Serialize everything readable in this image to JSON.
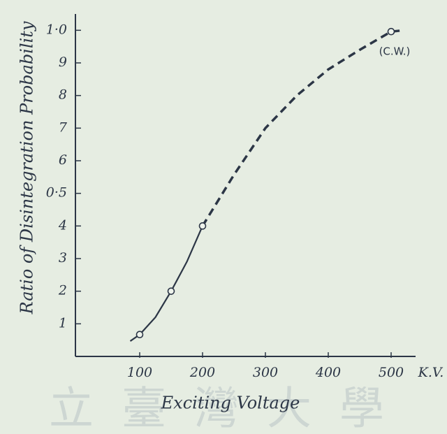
{
  "chart_data": {
    "type": "line",
    "title": null,
    "x_label": "Exciting Voltage",
    "y_label": "Ratio of Disintegration Probability",
    "x_unit_label": "K.V.",
    "annotation": "(C.W.)",
    "watermark": "立臺灣大學",
    "color": "#2c3646",
    "x": [
      85,
      100,
      125,
      150,
      175,
      200,
      250,
      300,
      350,
      400,
      450,
      500,
      520
    ],
    "series": [
      {
        "line_style": "solid",
        "values": [
          0.047,
          0.067,
          0.12,
          0.2,
          0.29,
          0.4,
          null,
          null,
          null,
          null,
          null,
          null,
          null
        ]
      },
      {
        "line_style": "dashed",
        "values": [
          null,
          null,
          null,
          null,
          null,
          0.4,
          0.557,
          0.7,
          0.8,
          0.88,
          0.94,
          0.996,
          1.0
        ]
      }
    ],
    "marked": [
      false,
      true,
      false,
      true,
      false,
      true,
      false,
      false,
      false,
      false,
      false,
      true,
      false
    ],
    "xlim": [
      0,
      550
    ],
    "ylim": [
      0,
      1.05
    ],
    "xticks": [
      100,
      200,
      300,
      400,
      500
    ],
    "yticks": [
      {
        "value": 0.1,
        "label": "1"
      },
      {
        "value": 0.2,
        "label": "2"
      },
      {
        "value": 0.3,
        "label": "3"
      },
      {
        "value": 0.4,
        "label": "4"
      },
      {
        "value": 0.5,
        "label": "0·5"
      },
      {
        "value": 0.6,
        "label": "6"
      },
      {
        "value": 0.7,
        "label": "7"
      },
      {
        "value": 0.8,
        "label": "8"
      },
      {
        "value": 0.9,
        "label": "9"
      },
      {
        "value": 1.0,
        "label": "1·0"
      }
    ],
    "grid": false
  }
}
